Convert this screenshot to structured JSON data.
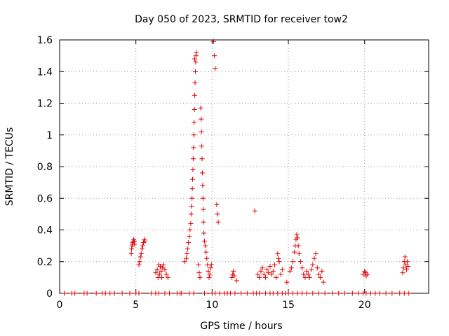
{
  "chart_data": {
    "type": "scatter",
    "title": "Day 050 of 2023, SRMTID for receiver tow2",
    "xlabel": "GPS time / hours",
    "ylabel": "SRMTID / TECUs",
    "xlim": [
      0,
      24.2
    ],
    "ylim": [
      0,
      1.6
    ],
    "xticks": [
      0,
      5,
      10,
      15,
      20
    ],
    "yticks": [
      0,
      0.2,
      0.4,
      0.6,
      0.8,
      1,
      1.2,
      1.4,
      1.6
    ],
    "ytick_labels": [
      "0",
      "0.2",
      "0.4",
      "0.6",
      "0.8",
      "1",
      "1.2",
      "1.4",
      "1.6"
    ],
    "grid": true,
    "marker": "+",
    "color": "#e00000",
    "series": [
      {
        "name": "tow2",
        "points": [
          [
            0.3,
            0
          ],
          [
            0.8,
            0
          ],
          [
            1.0,
            0
          ],
          [
            1.6,
            0
          ],
          [
            1.8,
            0
          ],
          [
            2.4,
            0
          ],
          [
            2.8,
            0
          ],
          [
            3.0,
            0
          ],
          [
            3.3,
            0
          ],
          [
            3.6,
            0
          ],
          [
            4.1,
            0
          ],
          [
            4.6,
            0
          ],
          [
            5.0,
            0
          ],
          [
            5.2,
            0
          ],
          [
            6.0,
            0
          ],
          [
            6.3,
            0
          ],
          [
            6.5,
            0
          ],
          [
            6.9,
            0
          ],
          [
            7.2,
            0
          ],
          [
            7.7,
            0
          ],
          [
            7.9,
            0
          ],
          [
            8.0,
            0
          ],
          [
            8.5,
            0
          ],
          [
            8.8,
            0
          ],
          [
            9.5,
            0
          ],
          [
            10.0,
            0
          ],
          [
            10.2,
            0
          ],
          [
            10.5,
            0
          ],
          [
            10.8,
            0
          ],
          [
            11.0,
            0
          ],
          [
            11.2,
            0
          ],
          [
            11.5,
            0
          ],
          [
            11.9,
            0
          ],
          [
            12.3,
            0
          ],
          [
            12.7,
            0
          ],
          [
            12.9,
            0
          ],
          [
            13.1,
            0
          ],
          [
            13.5,
            0
          ],
          [
            13.8,
            0
          ],
          [
            14.0,
            0
          ],
          [
            14.3,
            0
          ],
          [
            14.6,
            0
          ],
          [
            14.8,
            0
          ],
          [
            15.0,
            0
          ],
          [
            15.3,
            0
          ],
          [
            15.6,
            0
          ],
          [
            15.9,
            0
          ],
          [
            16.2,
            0
          ],
          [
            16.6,
            0
          ],
          [
            17.0,
            0
          ],
          [
            17.4,
            0
          ],
          [
            17.9,
            0
          ],
          [
            18.3,
            0
          ],
          [
            18.7,
            0
          ],
          [
            19.2,
            0
          ],
          [
            19.6,
            0
          ],
          [
            19.9,
            0
          ],
          [
            20.1,
            0
          ],
          [
            20.4,
            0
          ],
          [
            20.7,
            0
          ],
          [
            21.0,
            0
          ],
          [
            21.4,
            0
          ],
          [
            21.8,
            0
          ],
          [
            22.3,
            0
          ],
          [
            22.6,
            0
          ],
          [
            22.9,
            0
          ],
          [
            4.7,
            0.25
          ],
          [
            4.72,
            0.28
          ],
          [
            4.75,
            0.3
          ],
          [
            4.78,
            0.31
          ],
          [
            4.8,
            0.32
          ],
          [
            4.83,
            0.33
          ],
          [
            4.86,
            0.34
          ],
          [
            4.9,
            0.33
          ],
          [
            4.92,
            0.31
          ],
          [
            5.2,
            0.18
          ],
          [
            5.25,
            0.2
          ],
          [
            5.3,
            0.23
          ],
          [
            5.35,
            0.25
          ],
          [
            5.4,
            0.28
          ],
          [
            5.45,
            0.3
          ],
          [
            5.5,
            0.32
          ],
          [
            5.55,
            0.34
          ],
          [
            5.6,
            0.33
          ],
          [
            6.3,
            0.13
          ],
          [
            6.4,
            0.15
          ],
          [
            6.45,
            0.1
          ],
          [
            6.5,
            0.18
          ],
          [
            6.55,
            0.12
          ],
          [
            6.6,
            0.17
          ],
          [
            6.65,
            0.14
          ],
          [
            6.7,
            0.1
          ],
          [
            6.75,
            0.16
          ],
          [
            6.8,
            0.18
          ],
          [
            6.9,
            0.15
          ],
          [
            7.0,
            0.12
          ],
          [
            7.1,
            0.1
          ],
          [
            8.2,
            0.2
          ],
          [
            8.3,
            0.22
          ],
          [
            8.35,
            0.25
          ],
          [
            8.4,
            0.28
          ],
          [
            8.45,
            0.32
          ],
          [
            8.5,
            0.36
          ],
          [
            8.55,
            0.4
          ],
          [
            8.6,
            0.44
          ],
          [
            8.62,
            0.5
          ],
          [
            8.65,
            0.55
          ],
          [
            8.68,
            0.6
          ],
          [
            8.7,
            0.66
          ],
          [
            8.72,
            0.72
          ],
          [
            8.74,
            0.78
          ],
          [
            8.76,
            0.85
          ],
          [
            8.78,
            0.92
          ],
          [
            8.8,
            1.0
          ],
          [
            8.82,
            1.08
          ],
          [
            8.84,
            1.16
          ],
          [
            8.86,
            1.25
          ],
          [
            8.88,
            1.33
          ],
          [
            8.9,
            1.4
          ],
          [
            8.92,
            1.46
          ],
          [
            8.94,
            1.5
          ],
          [
            8.96,
            1.52
          ],
          [
            8.85,
            1.48
          ],
          [
            9.1,
            0.18
          ],
          [
            9.15,
            0.13
          ],
          [
            9.2,
            0.1
          ],
          [
            9.25,
            1.17
          ],
          [
            9.28,
            1.1
          ],
          [
            9.3,
            1.02
          ],
          [
            9.32,
            0.93
          ],
          [
            9.34,
            0.85
          ],
          [
            9.36,
            0.76
          ],
          [
            9.38,
            0.68
          ],
          [
            9.4,
            0.6
          ],
          [
            9.42,
            0.53
          ],
          [
            9.44,
            0.45
          ],
          [
            9.46,
            0.38
          ],
          [
            9.5,
            0.33
          ],
          [
            9.55,
            0.3
          ],
          [
            9.6,
            0.26
          ],
          [
            9.65,
            0.22
          ],
          [
            9.7,
            0.18
          ],
          [
            9.75,
            0.14
          ],
          [
            9.8,
            0.1
          ],
          [
            9.85,
            0.12
          ],
          [
            9.9,
            0.16
          ],
          [
            9.95,
            0.18
          ],
          [
            10.1,
            1.59
          ],
          [
            10.15,
            1.5
          ],
          [
            10.2,
            1.42
          ],
          [
            10.3,
            0.56
          ],
          [
            10.35,
            0.5
          ],
          [
            10.4,
            0.45
          ],
          [
            11.3,
            0.1
          ],
          [
            11.35,
            0.12
          ],
          [
            11.4,
            0.14
          ],
          [
            11.45,
            0.11
          ],
          [
            11.6,
            0.08
          ],
          [
            12.8,
            0.52
          ],
          [
            13.0,
            0.12
          ],
          [
            13.1,
            0.1
          ],
          [
            13.2,
            0.14
          ],
          [
            13.3,
            0.16
          ],
          [
            13.4,
            0.12
          ],
          [
            13.5,
            0.1
          ],
          [
            13.6,
            0.15
          ],
          [
            13.7,
            0.13
          ],
          [
            13.8,
            0.17
          ],
          [
            13.9,
            0.12
          ],
          [
            14.0,
            0.14
          ],
          [
            14.1,
            0.18
          ],
          [
            14.2,
            0.1
          ],
          [
            14.3,
            0.25
          ],
          [
            14.35,
            0.22
          ],
          [
            14.4,
            0.2
          ],
          [
            14.5,
            0.12
          ],
          [
            14.6,
            0.15
          ],
          [
            14.9,
            0.07
          ],
          [
            15.1,
            0.14
          ],
          [
            15.2,
            0.16
          ],
          [
            15.3,
            0.2
          ],
          [
            15.4,
            0.26
          ],
          [
            15.45,
            0.3
          ],
          [
            15.5,
            0.34
          ],
          [
            15.55,
            0.37
          ],
          [
            15.6,
            0.35
          ],
          [
            15.65,
            0.3
          ],
          [
            15.7,
            0.25
          ],
          [
            15.8,
            0.2
          ],
          [
            15.9,
            0.16
          ],
          [
            16.0,
            0.12
          ],
          [
            16.1,
            0.1
          ],
          [
            16.2,
            0.14
          ],
          [
            16.3,
            0.12
          ],
          [
            16.4,
            0.1
          ],
          [
            16.5,
            0.15
          ],
          [
            16.6,
            0.18
          ],
          [
            16.7,
            0.22
          ],
          [
            16.8,
            0.25
          ],
          [
            16.9,
            0.16
          ],
          [
            17.0,
            0.12
          ],
          [
            17.1,
            0.1
          ],
          [
            17.2,
            0.14
          ],
          [
            17.3,
            0.07
          ],
          [
            19.9,
            0.12
          ],
          [
            20.0,
            0.14
          ],
          [
            20.05,
            0.13
          ],
          [
            20.1,
            0.11
          ],
          [
            20.2,
            0.12
          ],
          [
            22.5,
            0.13
          ],
          [
            22.55,
            0.16
          ],
          [
            22.6,
            0.2
          ],
          [
            22.65,
            0.23
          ],
          [
            22.7,
            0.18
          ],
          [
            22.75,
            0.15
          ],
          [
            22.8,
            0.2
          ],
          [
            22.85,
            0.17
          ]
        ]
      }
    ]
  }
}
